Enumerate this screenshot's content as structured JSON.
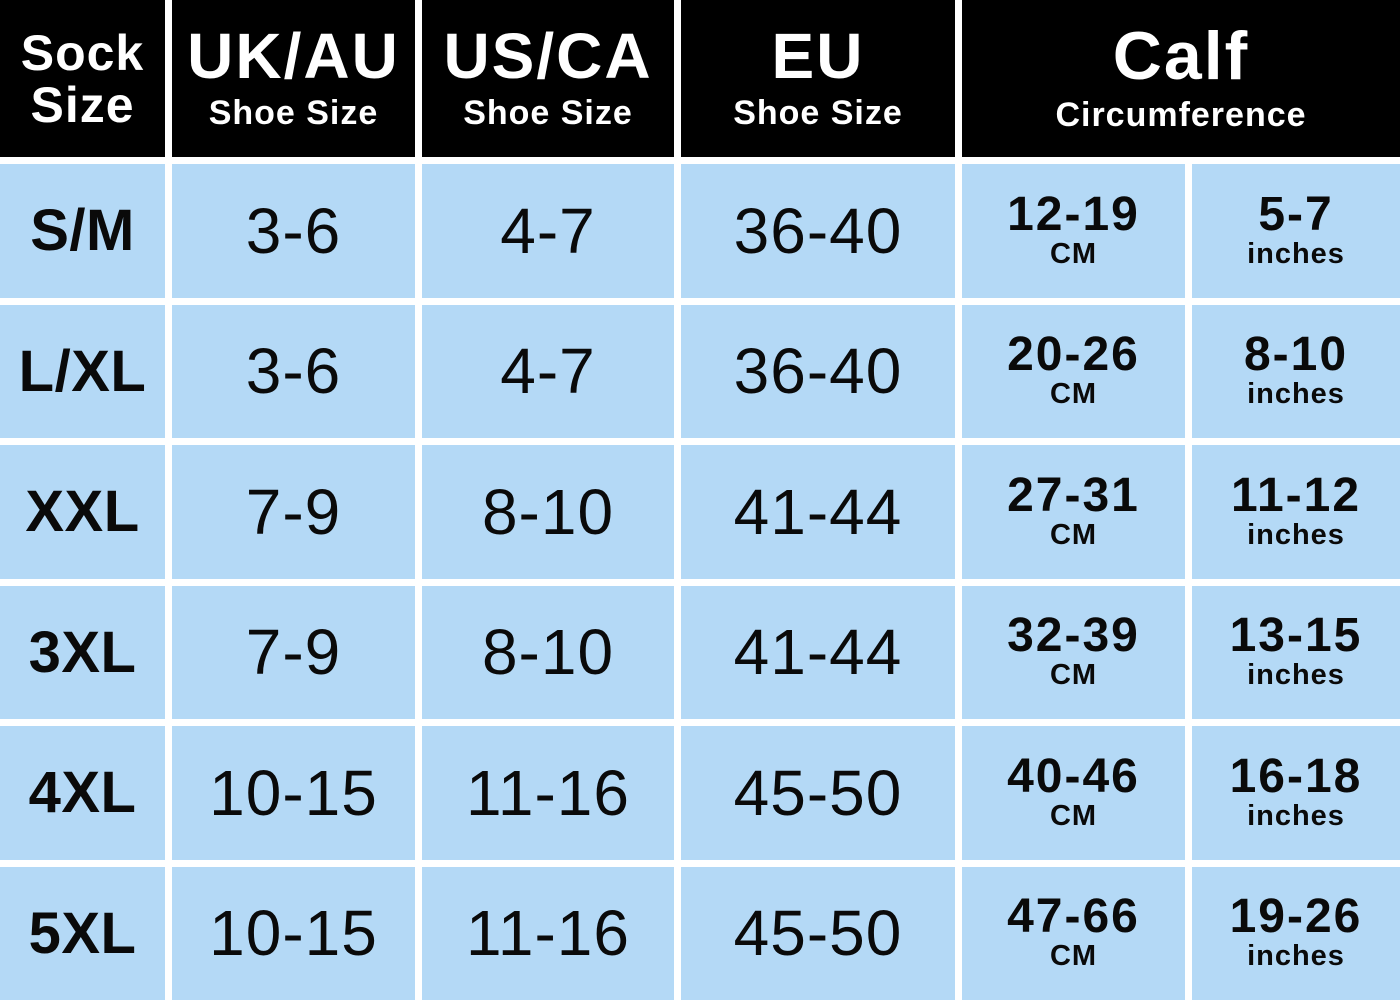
{
  "colors": {
    "header_bg": "#000000",
    "header_text": "#ffffff",
    "cell_bg": "#b4d9f6",
    "cell_text": "#0a0a0a",
    "divider": "#ffffff"
  },
  "chart_data": {
    "type": "table",
    "header": {
      "sock": {
        "line1": "Sock",
        "line2": "Size"
      },
      "uk_au": {
        "title": "UK/AU",
        "subtitle": "Shoe Size"
      },
      "us_ca": {
        "title": "US/CA",
        "subtitle": "Shoe Size"
      },
      "eu": {
        "title": "EU",
        "subtitle": "Shoe Size"
      },
      "calf": {
        "title": "Calf",
        "subtitle": "Circumference"
      }
    },
    "rows": [
      {
        "size": "S/M",
        "uk_au": "3-6",
        "us_ca": "4-7",
        "eu": "36-40",
        "calf_cm": "12-19",
        "cm_unit": "CM",
        "calf_inches": "5-7",
        "inches_unit": "inches"
      },
      {
        "size": "L/XL",
        "uk_au": "3-6",
        "us_ca": "4-7",
        "eu": "36-40",
        "calf_cm": "20-26",
        "cm_unit": "CM",
        "calf_inches": "8-10",
        "inches_unit": "inches"
      },
      {
        "size": "XXL",
        "uk_au": "7-9",
        "us_ca": "8-10",
        "eu": "41-44",
        "calf_cm": "27-31",
        "cm_unit": "CM",
        "calf_inches": "11-12",
        "inches_unit": "inches"
      },
      {
        "size": "3XL",
        "uk_au": "7-9",
        "us_ca": "8-10",
        "eu": "41-44",
        "calf_cm": "32-39",
        "cm_unit": "CM",
        "calf_inches": "13-15",
        "inches_unit": "inches"
      },
      {
        "size": "4XL",
        "uk_au": "10-15",
        "us_ca": "11-16",
        "eu": "45-50",
        "calf_cm": "40-46",
        "cm_unit": "CM",
        "calf_inches": "16-18",
        "inches_unit": "inches"
      },
      {
        "size": "5XL",
        "uk_au": "10-15",
        "us_ca": "11-16",
        "eu": "45-50",
        "calf_cm": "47-66",
        "cm_unit": "CM",
        "calf_inches": "19-26",
        "inches_unit": "inches"
      }
    ]
  }
}
